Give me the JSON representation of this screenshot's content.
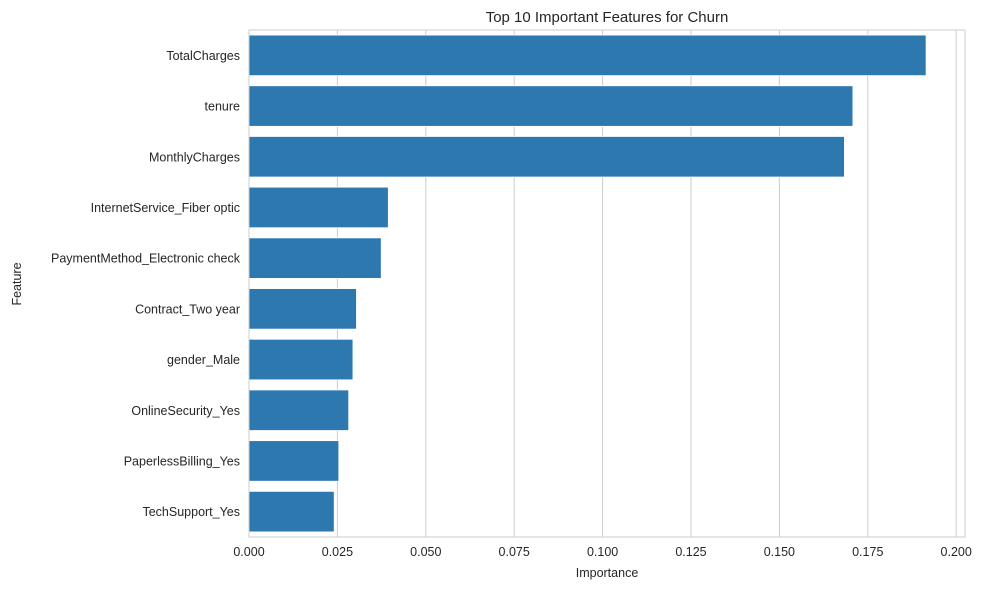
{
  "chart_data": {
    "type": "bar",
    "orientation": "horizontal",
    "title": "Top 10 Important Features for Churn",
    "xlabel": "Importance",
    "ylabel": "Feature",
    "categories": [
      "TotalCharges",
      "tenure",
      "MonthlyCharges",
      "InternetService_Fiber optic",
      "PaymentMethod_Electronic check",
      "Contract_Two year",
      "gender_Male",
      "OnlineSecurity_Yes",
      "PaperlessBilling_Yes",
      "TechSupport_Yes"
    ],
    "values": [
      0.1915,
      0.1708,
      0.1684,
      0.0394,
      0.0374,
      0.0304,
      0.0294,
      0.0282,
      0.0254,
      0.0241
    ],
    "xlim": [
      0,
      0.2025
    ],
    "x_ticks": [
      "0.000",
      "0.025",
      "0.050",
      "0.075",
      "0.100",
      "0.125",
      "0.150",
      "0.175",
      "0.200"
    ],
    "x_tick_values": [
      0,
      0.025,
      0.05,
      0.075,
      0.1,
      0.125,
      0.15,
      0.175,
      0.2
    ],
    "grid": true,
    "color": "#2e78b0"
  }
}
